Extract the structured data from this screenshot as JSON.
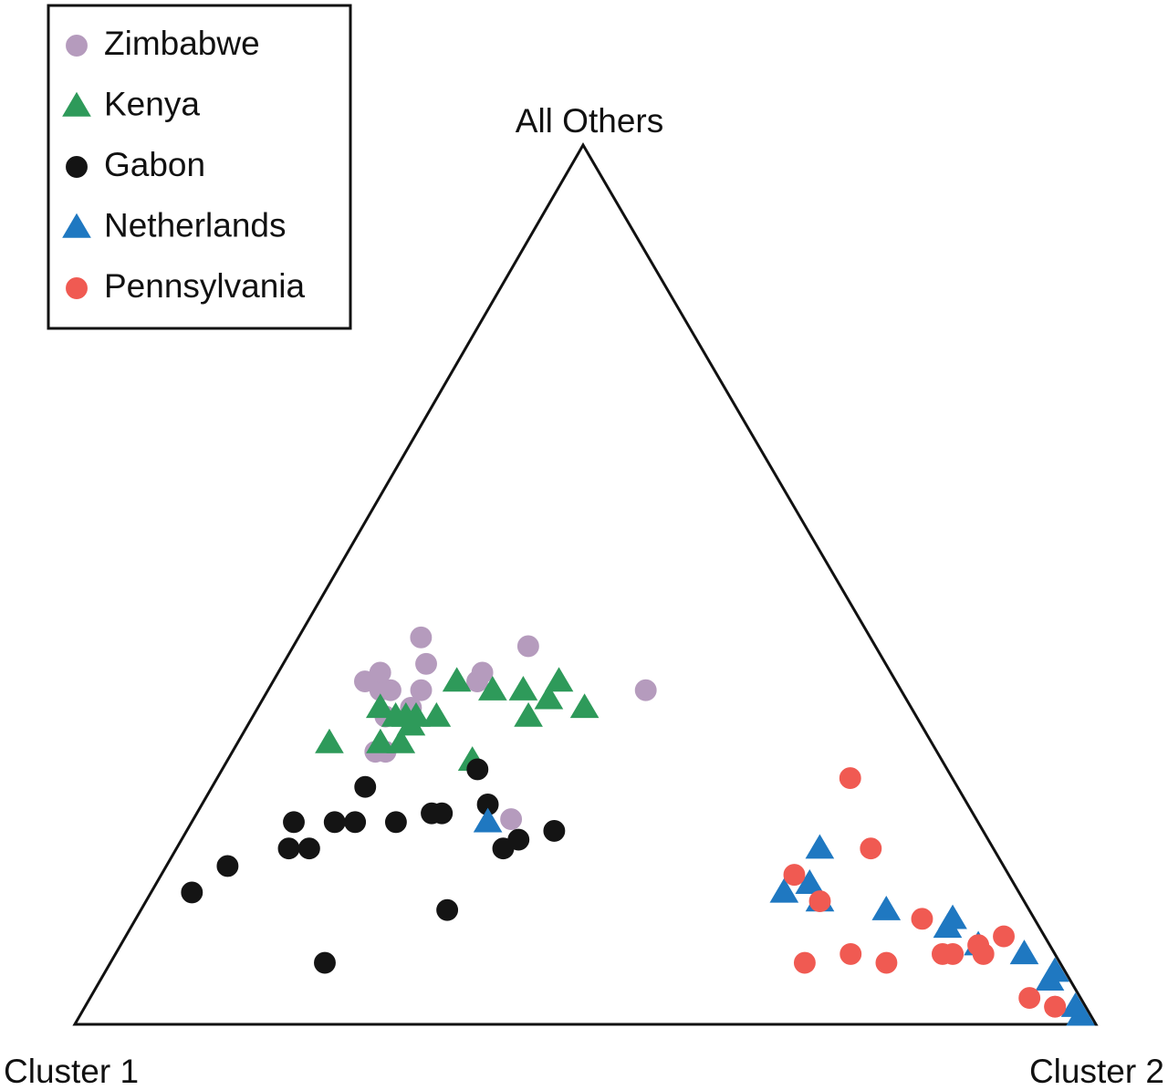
{
  "chart_data": {
    "type": "scatter",
    "subtype": "ternary",
    "vertices": [
      "All Others",
      "Cluster 1",
      "Cluster 2"
    ],
    "axis_range": [
      0,
      1
    ],
    "grid": false,
    "legend_position": "top-left",
    "legend": [
      {
        "name": "Zimbabwe",
        "marker": "circle",
        "color": "#b59bbd"
      },
      {
        "name": "Kenya",
        "marker": "triangle",
        "color": "#2e9a5a"
      },
      {
        "name": "Gabon",
        "marker": "circle",
        "color": "#141414"
      },
      {
        "name": "Netherlands",
        "marker": "triangle",
        "color": "#1f78c1"
      },
      {
        "name": "Pennsylvania",
        "marker": "circle",
        "color": "#f05a52"
      }
    ],
    "series": [
      {
        "name": "Zimbabwe",
        "marker": "circle",
        "color": "#b59bbd",
        "fields": [
          "cluster_1",
          "cluster_2",
          "all_others"
        ],
        "points": [
          [
            0.44,
            0.12,
            0.44
          ],
          [
            0.34,
            0.23,
            0.43
          ],
          [
            0.52,
            0.09,
            0.39
          ],
          [
            0.5,
            0.12,
            0.38
          ],
          [
            0.51,
            0.11,
            0.38
          ],
          [
            0.5,
            0.1,
            0.4
          ],
          [
            0.45,
            0.14,
            0.41
          ],
          [
            0.41,
            0.2,
            0.39
          ],
          [
            0.4,
            0.2,
            0.4
          ],
          [
            0.47,
            0.15,
            0.38
          ],
          [
            0.25,
            0.37,
            0.38
          ],
          [
            0.49,
            0.15,
            0.36
          ],
          [
            0.52,
            0.13,
            0.35
          ],
          [
            0.54,
            0.15,
            0.31
          ],
          [
            0.55,
            0.14,
            0.31
          ],
          [
            0.41,
            0.28,
            0.21
          ]
        ]
      },
      {
        "name": "Kenya",
        "marker": "triangle",
        "color": "#2e9a5a",
        "fields": [
          "cluster_1",
          "cluster_2",
          "all_others"
        ],
        "points": [
          [
            0.52,
            0.12,
            0.36
          ],
          [
            0.43,
            0.18,
            0.39
          ],
          [
            0.4,
            0.22,
            0.38
          ],
          [
            0.37,
            0.25,
            0.38
          ],
          [
            0.33,
            0.28,
            0.39
          ],
          [
            0.32,
            0.32,
            0.36
          ],
          [
            0.5,
            0.16,
            0.34
          ],
          [
            0.35,
            0.28,
            0.37
          ],
          [
            0.47,
            0.18,
            0.35
          ],
          [
            0.51,
            0.14,
            0.35
          ],
          [
            0.5,
            0.15,
            0.35
          ],
          [
            0.49,
            0.16,
            0.35
          ],
          [
            0.59,
            0.09,
            0.32
          ],
          [
            0.54,
            0.14,
            0.32
          ],
          [
            0.52,
            0.16,
            0.32
          ],
          [
            0.46,
            0.24,
            0.3
          ],
          [
            0.38,
            0.27,
            0.35
          ]
        ]
      },
      {
        "name": "Gabon",
        "marker": "circle",
        "color": "#141414",
        "fields": [
          "cluster_1",
          "cluster_2",
          "all_others"
        ],
        "points": [
          [
            0.46,
            0.25,
            0.29
          ],
          [
            0.58,
            0.15,
            0.27
          ],
          [
            0.67,
            0.1,
            0.23
          ],
          [
            0.63,
            0.14,
            0.23
          ],
          [
            0.61,
            0.16,
            0.23
          ],
          [
            0.57,
            0.2,
            0.23
          ],
          [
            0.53,
            0.23,
            0.24
          ],
          [
            0.52,
            0.24,
            0.24
          ],
          [
            0.47,
            0.28,
            0.25
          ],
          [
            0.69,
            0.11,
            0.2
          ],
          [
            0.67,
            0.13,
            0.2
          ],
          [
            0.48,
            0.32,
            0.2
          ],
          [
            0.46,
            0.33,
            0.21
          ],
          [
            0.42,
            0.36,
            0.22
          ],
          [
            0.76,
            0.06,
            0.18
          ],
          [
            0.57,
            0.3,
            0.13
          ],
          [
            0.81,
            0.04,
            0.15
          ],
          [
            0.72,
            0.21,
            0.07
          ]
        ]
      },
      {
        "name": "Netherlands",
        "marker": "triangle",
        "color": "#1f78c1",
        "fields": [
          "cluster_1",
          "cluster_2",
          "all_others"
        ],
        "points": [
          [
            0.48,
            0.29,
            0.23
          ],
          [
            0.17,
            0.63,
            0.2
          ],
          [
            0.23,
            0.62,
            0.15
          ],
          [
            0.2,
            0.64,
            0.16
          ],
          [
            0.2,
            0.66,
            0.14
          ],
          [
            0.14,
            0.73,
            0.13
          ],
          [
            0.09,
            0.8,
            0.11
          ],
          [
            0.08,
            0.8,
            0.12
          ],
          [
            0.07,
            0.84,
            0.09
          ],
          [
            0.03,
            0.89,
            0.08
          ],
          [
            0.02,
            0.93,
            0.05
          ],
          [
            0.01,
            0.93,
            0.06
          ],
          [
            0.01,
            0.98,
            0.01
          ],
          [
            0.01,
            0.97,
            0.02
          ]
        ]
      },
      {
        "name": "Pennsylvania",
        "marker": "circle",
        "color": "#f05a52",
        "fields": [
          "cluster_1",
          "cluster_2",
          "all_others"
        ],
        "points": [
          [
            0.1,
            0.62,
            0.28
          ],
          [
            0.21,
            0.62,
            0.17
          ],
          [
            0.12,
            0.68,
            0.2
          ],
          [
            0.2,
            0.66,
            0.14
          ],
          [
            0.11,
            0.77,
            0.12
          ],
          [
            0.2,
            0.72,
            0.08
          ],
          [
            0.11,
            0.81,
            0.08
          ],
          [
            0.07,
            0.84,
            0.09
          ],
          [
            0.04,
            0.86,
            0.1
          ],
          [
            0.1,
            0.82,
            0.08
          ],
          [
            0.25,
            0.68,
            0.07
          ],
          [
            0.17,
            0.76,
            0.07
          ],
          [
            0.07,
            0.85,
            0.08
          ],
          [
            0.05,
            0.92,
            0.03
          ],
          [
            0.03,
            0.95,
            0.02
          ],
          [
            0.03,
            0.95,
            0.02
          ]
        ]
      }
    ]
  }
}
